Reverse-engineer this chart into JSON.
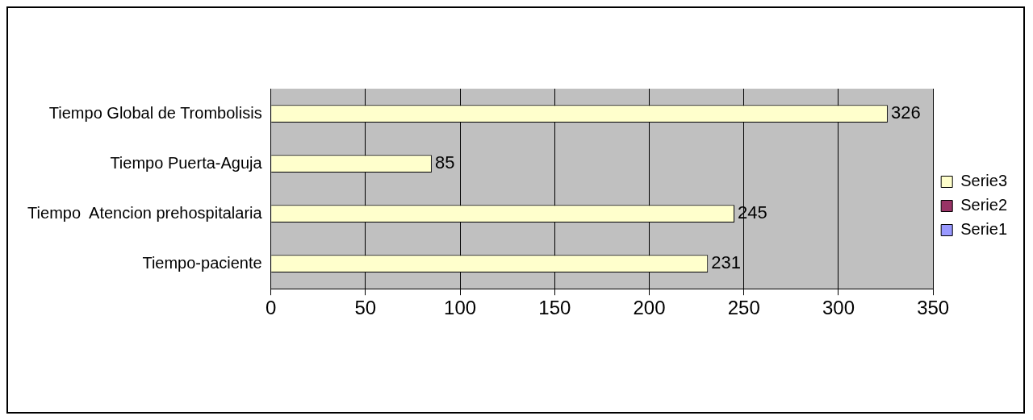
{
  "chart_data": {
    "type": "bar",
    "orientation": "horizontal",
    "categories": [
      "Tiempo Global de Trombolisis",
      "Tiempo Puerta-Aguja",
      "Tiempo  Atencion prehospitalaria",
      "Tiempo-paciente"
    ],
    "series": [
      {
        "name": "Serie3",
        "color": "#ffffcc",
        "values": [
          326,
          85,
          245,
          231
        ]
      },
      {
        "name": "Serie2",
        "color": "#993366",
        "values": [
          null,
          null,
          null,
          null
        ]
      },
      {
        "name": "Serie1",
        "color": "#9999ff",
        "values": [
          null,
          null,
          null,
          null
        ]
      }
    ],
    "xlim": [
      0,
      350
    ],
    "xticks": [
      0,
      50,
      100,
      150,
      200,
      250,
      300,
      350
    ],
    "grid": "x",
    "legend": "right",
    "data_labels": true
  }
}
